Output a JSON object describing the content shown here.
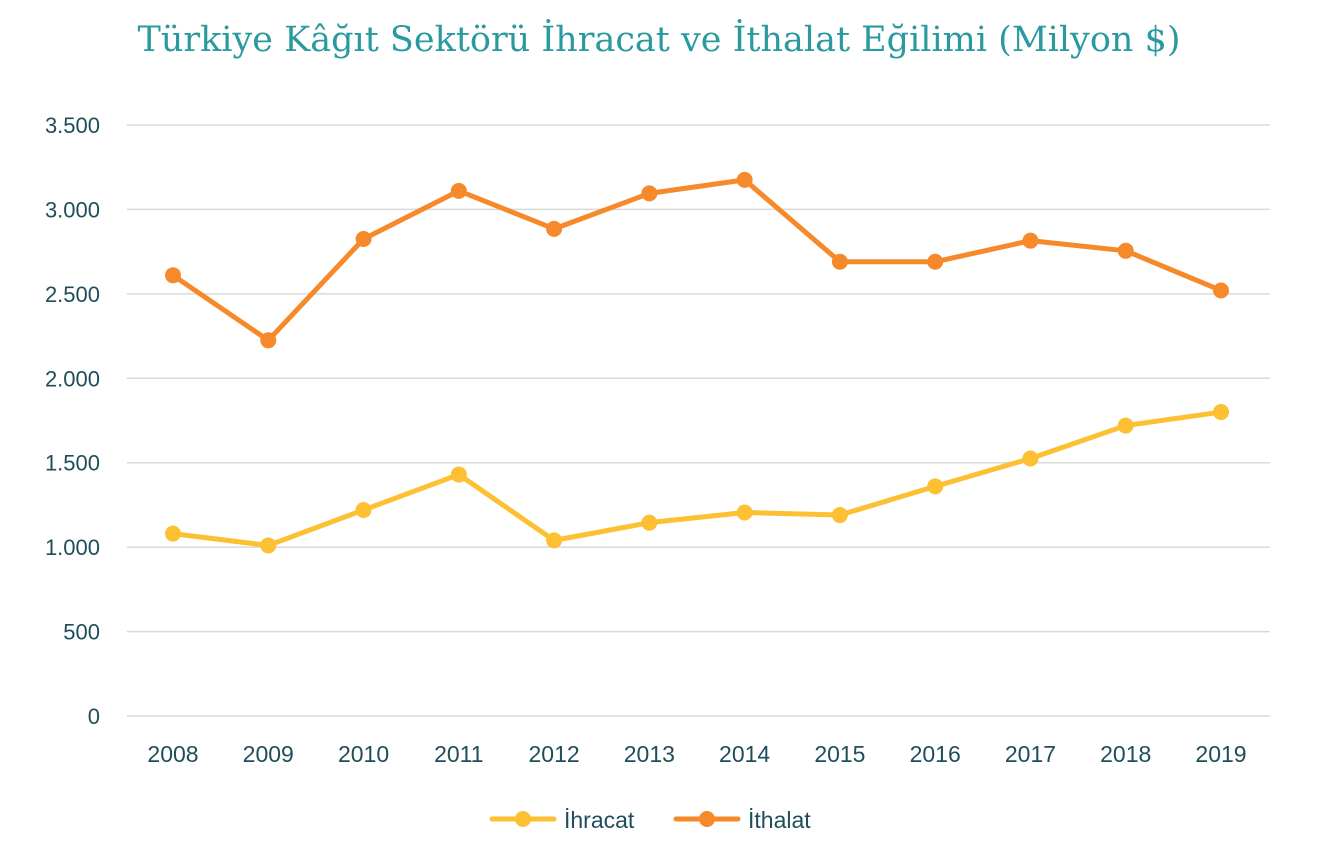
{
  "chart_data": {
    "type": "line",
    "title": "Türkiye Kâğıt Sektörü İhracat ve İthalat Eğilimi (Milyon $)",
    "xlabel": "",
    "ylabel": "",
    "categories": [
      "2008",
      "2009",
      "2010",
      "2011",
      "2012",
      "2013",
      "2014",
      "2015",
      "2016",
      "2017",
      "2018",
      "2019"
    ],
    "y_ticks": [
      0,
      500,
      1000,
      1500,
      2000,
      2500,
      3000,
      3500
    ],
    "y_tick_labels": [
      "0",
      "500",
      "1.000",
      "1.500",
      "2.000",
      "2.500",
      "3.000",
      "3.500"
    ],
    "ylim": [
      0,
      3500
    ],
    "grid": true,
    "legend_position": "bottom",
    "series": [
      {
        "name": "İhracat",
        "color": "#fcc032",
        "values": [
          1080,
          1010,
          1220,
          1430,
          1040,
          1145,
          1205,
          1190,
          1360,
          1525,
          1720,
          1800
        ]
      },
      {
        "name": "İthalat",
        "color": "#f68a2a",
        "values": [
          2610,
          2225,
          2825,
          3110,
          2885,
          3095,
          3175,
          2690,
          2690,
          2815,
          2755,
          2520
        ]
      }
    ]
  },
  "colors": {
    "title": "#2a9a9e",
    "axis_text": "#1f4e5a",
    "grid": "#d9d9d9"
  }
}
